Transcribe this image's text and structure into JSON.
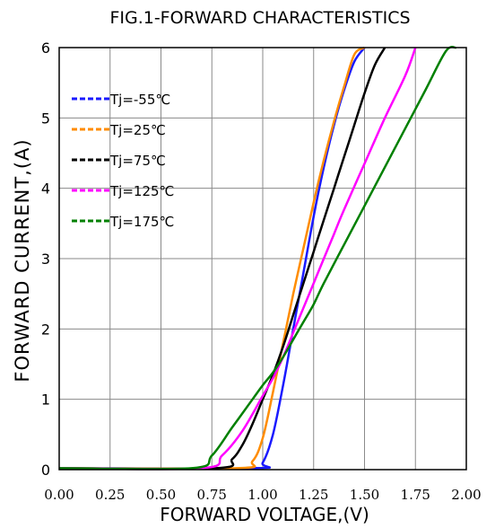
{
  "chart_data": {
    "type": "line",
    "title": "FIG.1-FORWARD CHARACTERISTICS",
    "xlabel": "FORWARD VOLTAGE,(V)",
    "ylabel": "FORWARD CURRENT,(A)",
    "xlim": [
      0,
      2.0
    ],
    "ylim": [
      0,
      6
    ],
    "x_ticks": [
      "0.00",
      "0.25",
      "0.50",
      "0.75",
      "1.00",
      "1.25",
      "1.50",
      "1.75",
      "2.00"
    ],
    "y_ticks": [
      "0",
      "1",
      "2",
      "3",
      "4",
      "5",
      "6"
    ],
    "grid": true,
    "legend_position": "top-left",
    "series": [
      {
        "name": "Tj=-55℃",
        "color": "#1a1aff",
        "points": [
          [
            0.0,
            0.02
          ],
          [
            0.95,
            0.02
          ],
          [
            1.0,
            0.1
          ],
          [
            1.05,
            0.5
          ],
          [
            1.1,
            1.2
          ],
          [
            1.15,
            2.0
          ],
          [
            1.2,
            2.8
          ],
          [
            1.25,
            3.6
          ],
          [
            1.3,
            4.3
          ],
          [
            1.35,
            4.9
          ],
          [
            1.4,
            5.4
          ],
          [
            1.45,
            5.8
          ],
          [
            1.5,
            6.0
          ]
        ]
      },
      {
        "name": "Tj=25℃",
        "color": "#ff8c00",
        "points": [
          [
            0.0,
            0.02
          ],
          [
            0.87,
            0.02
          ],
          [
            0.95,
            0.12
          ],
          [
            1.0,
            0.45
          ],
          [
            1.05,
            1.1
          ],
          [
            1.1,
            1.8
          ],
          [
            1.15,
            2.5
          ],
          [
            1.2,
            3.15
          ],
          [
            1.25,
            3.8
          ],
          [
            1.3,
            4.4
          ],
          [
            1.35,
            4.95
          ],
          [
            1.4,
            5.45
          ],
          [
            1.45,
            5.9
          ],
          [
            1.5,
            6.0
          ]
        ]
      },
      {
        "name": "Tj=75℃",
        "color": "#000000",
        "points": [
          [
            0.0,
            0.02
          ],
          [
            0.77,
            0.02
          ],
          [
            0.85,
            0.15
          ],
          [
            0.9,
            0.35
          ],
          [
            0.95,
            0.65
          ],
          [
            1.0,
            1.0
          ],
          [
            1.05,
            1.35
          ],
          [
            1.1,
            1.75
          ],
          [
            1.15,
            2.2
          ],
          [
            1.2,
            2.65
          ],
          [
            1.25,
            3.1
          ],
          [
            1.3,
            3.55
          ],
          [
            1.35,
            4.0
          ],
          [
            1.4,
            4.45
          ],
          [
            1.45,
            4.9
          ],
          [
            1.5,
            5.35
          ],
          [
            1.55,
            5.75
          ],
          [
            1.6,
            6.0
          ]
        ]
      },
      {
        "name": "Tj=125℃",
        "color": "#ff00ff",
        "points": [
          [
            0.0,
            0.02
          ],
          [
            0.7,
            0.02
          ],
          [
            0.8,
            0.2
          ],
          [
            0.9,
            0.55
          ],
          [
            1.0,
            1.05
          ],
          [
            1.05,
            1.3
          ],
          [
            1.1,
            1.6
          ],
          [
            1.15,
            1.95
          ],
          [
            1.2,
            2.3
          ],
          [
            1.25,
            2.65
          ],
          [
            1.3,
            3.0
          ],
          [
            1.35,
            3.35
          ],
          [
            1.4,
            3.7
          ],
          [
            1.5,
            4.35
          ],
          [
            1.6,
            5.0
          ],
          [
            1.7,
            5.6
          ],
          [
            1.75,
            6.0
          ]
        ]
      },
      {
        "name": "Tj=175℃",
        "color": "#008000",
        "points": [
          [
            0.0,
            0.02
          ],
          [
            0.65,
            0.02
          ],
          [
            0.75,
            0.2
          ],
          [
            0.85,
            0.6
          ],
          [
            0.95,
            1.0
          ],
          [
            1.0,
            1.2
          ],
          [
            1.05,
            1.38
          ],
          [
            1.1,
            1.6
          ],
          [
            1.15,
            1.85
          ],
          [
            1.2,
            2.1
          ],
          [
            1.25,
            2.35
          ],
          [
            1.3,
            2.65
          ],
          [
            1.4,
            3.2
          ],
          [
            1.5,
            3.75
          ],
          [
            1.6,
            4.3
          ],
          [
            1.7,
            4.85
          ],
          [
            1.8,
            5.4
          ],
          [
            1.9,
            5.95
          ],
          [
            1.95,
            6.0
          ]
        ]
      }
    ]
  }
}
